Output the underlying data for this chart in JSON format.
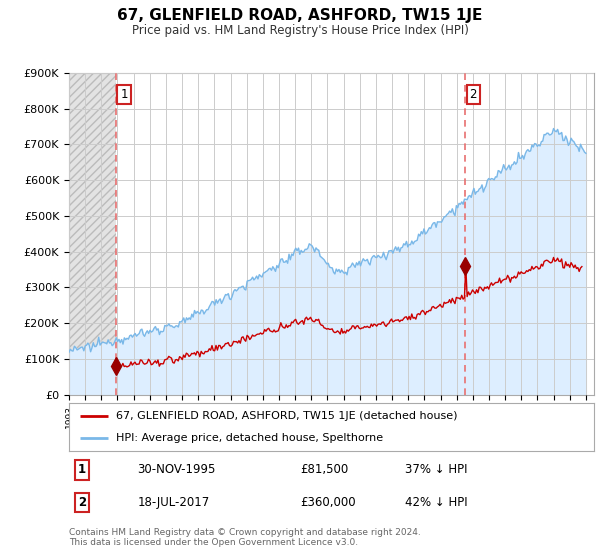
{
  "title": "67, GLENFIELD ROAD, ASHFORD, TW15 1JE",
  "subtitle": "Price paid vs. HM Land Registry's House Price Index (HPI)",
  "ylim": [
    0,
    900000
  ],
  "yticks": [
    0,
    100000,
    200000,
    300000,
    400000,
    500000,
    600000,
    700000,
    800000,
    900000
  ],
  "ytick_labels": [
    "£0",
    "£100K",
    "£200K",
    "£300K",
    "£400K",
    "£500K",
    "£600K",
    "£700K",
    "£800K",
    "£900K"
  ],
  "hpi_color": "#7ab8e8",
  "hpi_fill_color": "#ddeeff",
  "price_color": "#cc0000",
  "marker_color": "#990000",
  "vline_color": "#e87070",
  "hatch_color": "#bbbbbb",
  "grid_color": "#cccccc",
  "legend_label_price": "67, GLENFIELD ROAD, ASHFORD, TW15 1JE (detached house)",
  "legend_label_hpi": "HPI: Average price, detached house, Spelthorne",
  "sale1_date": "30-NOV-1995",
  "sale1_price": "£81,500",
  "sale1_note": "37% ↓ HPI",
  "sale2_date": "18-JUL-2017",
  "sale2_price": "£360,000",
  "sale2_note": "42% ↓ HPI",
  "footer": "Contains HM Land Registry data © Crown copyright and database right 2024.\nThis data is licensed under the Open Government Licence v3.0.",
  "sale1_year": 1995.92,
  "sale1_value": 81500,
  "sale2_year": 2017.54,
  "sale2_value": 360000,
  "hpi_start_year": 1993.0,
  "hpi_end_year": 2025.0,
  "price_start_year": 1995.75,
  "price_end_year": 2024.75,
  "xlim_left": 1993.0,
  "xlim_right": 2025.5
}
